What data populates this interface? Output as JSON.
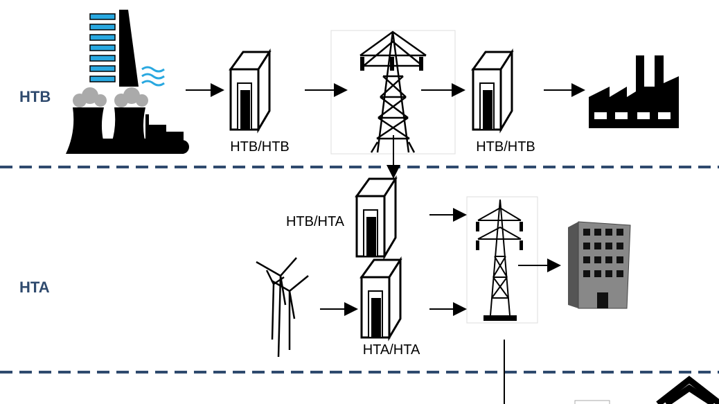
{
  "levels": [
    {
      "label": "HTB"
    },
    {
      "label": "HTA"
    }
  ],
  "nodes": [
    {
      "label": "HTB/HTB"
    },
    {
      "label": "HTB/HTB"
    },
    {
      "label": "HTB/HTA"
    },
    {
      "label": "HTA/HTA"
    }
  ]
}
